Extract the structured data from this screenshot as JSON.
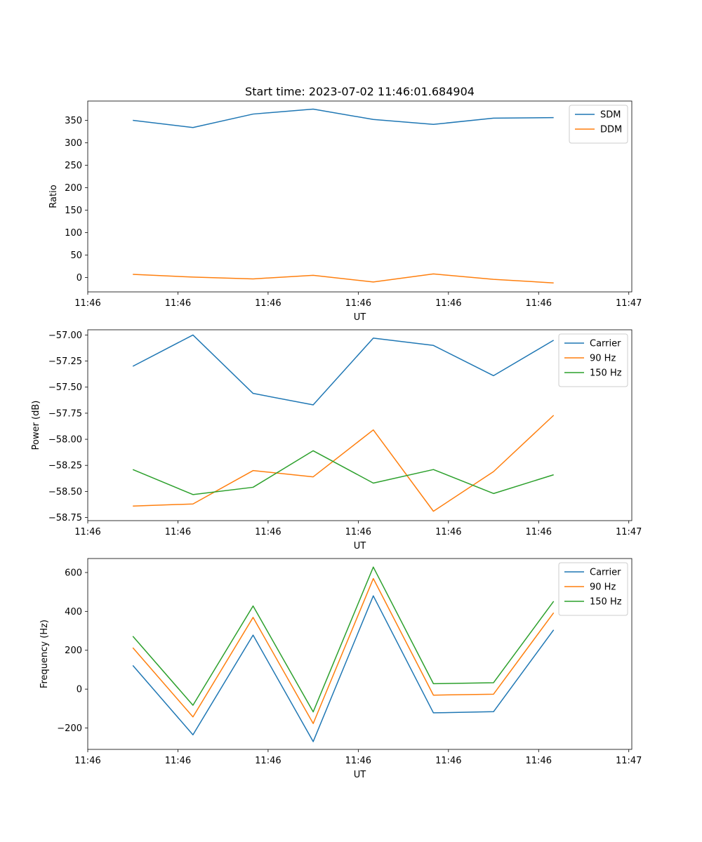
{
  "chart_data": [
    {
      "type": "line",
      "title": "Start time: 2023-07-02 11:46:01.684904",
      "xlabel": "UT",
      "ylabel": "Ratio",
      "x": [
        1,
        2,
        3,
        4,
        5,
        6,
        7,
        8
      ],
      "xlim": [
        0.25,
        9.3
      ],
      "xticks": [
        0.25,
        1.75,
        3.25,
        4.75,
        6.25,
        7.75,
        9.25
      ],
      "xtick_labels": [
        "11:46",
        "11:46",
        "11:46",
        "11:46",
        "11:46",
        "11:46",
        "11:47"
      ],
      "ylim": [
        -32,
        393
      ],
      "yticks": [
        0,
        50,
        100,
        150,
        200,
        250,
        300,
        350
      ],
      "ytick_labels": [
        "0",
        "50",
        "100",
        "150",
        "200",
        "250",
        "300",
        "350"
      ],
      "legend_position": "top-right",
      "series": [
        {
          "name": "SDM",
          "color": "#1f77b4",
          "values": [
            350,
            334,
            364,
            375,
            352,
            341,
            355,
            356
          ]
        },
        {
          "name": "DDM",
          "color": "#ff7f0e",
          "values": [
            7,
            1,
            -3,
            5,
            -10,
            8,
            -4,
            -12
          ]
        }
      ]
    },
    {
      "type": "line",
      "title": "",
      "xlabel": "UT",
      "ylabel": "Power (dB)",
      "x": [
        1,
        2,
        3,
        4,
        5,
        6,
        7,
        8
      ],
      "xlim": [
        0.25,
        9.3
      ],
      "xticks": [
        0.25,
        1.75,
        3.25,
        4.75,
        6.25,
        7.75,
        9.25
      ],
      "xtick_labels": [
        "11:46",
        "11:46",
        "11:46",
        "11:46",
        "11:46",
        "11:46",
        "11:47"
      ],
      "ylim": [
        -58.78,
        -56.95
      ],
      "yticks": [
        -57.0,
        -57.25,
        -57.5,
        -57.75,
        -58.0,
        -58.25,
        -58.5,
        -58.75
      ],
      "ytick_labels": [
        "−57.00",
        "−57.25",
        "−57.50",
        "−57.75",
        "−58.00",
        "−58.25",
        "−58.50",
        "−58.75"
      ],
      "legend_position": "top-right",
      "series": [
        {
          "name": "Carrier",
          "color": "#1f77b4",
          "values": [
            -57.3,
            -57.0,
            -57.56,
            -57.67,
            -57.03,
            -57.1,
            -57.39,
            -57.05
          ]
        },
        {
          "name": "90 Hz",
          "color": "#ff7f0e",
          "values": [
            -58.64,
            -58.62,
            -58.3,
            -58.36,
            -57.91,
            -58.69,
            -58.31,
            -57.77
          ]
        },
        {
          "name": "150 Hz",
          "color": "#2ca02c",
          "values": [
            -58.29,
            -58.53,
            -58.46,
            -58.11,
            -58.42,
            -58.29,
            -58.52,
            -58.34
          ]
        }
      ]
    },
    {
      "type": "line",
      "title": "",
      "xlabel": "UT",
      "ylabel": "Frequency (Hz)",
      "x": [
        1,
        2,
        3,
        4,
        5,
        6,
        7,
        8
      ],
      "xlim": [
        0.25,
        9.3
      ],
      "xticks": [
        0.25,
        1.75,
        3.25,
        4.75,
        6.25,
        7.75,
        9.25
      ],
      "xtick_labels": [
        "11:46",
        "11:46",
        "11:46",
        "11:46",
        "11:46",
        "11:46",
        "11:47"
      ],
      "ylim": [
        -310,
        672
      ],
      "yticks": [
        -200,
        0,
        200,
        400,
        600
      ],
      "ytick_labels": [
        "−200",
        "0",
        "200",
        "400",
        "600"
      ],
      "legend_position": "top-right",
      "series": [
        {
          "name": "Carrier",
          "color": "#1f77b4",
          "values": [
            122,
            -235,
            278,
            -270,
            480,
            -122,
            -116,
            305
          ]
        },
        {
          "name": "90 Hz",
          "color": "#ff7f0e",
          "values": [
            213,
            -143,
            369,
            -177,
            569,
            -31,
            -26,
            393
          ]
        },
        {
          "name": "150 Hz",
          "color": "#2ca02c",
          "values": [
            272,
            -83,
            428,
            -117,
            628,
            28,
            33,
            452
          ]
        }
      ]
    }
  ]
}
